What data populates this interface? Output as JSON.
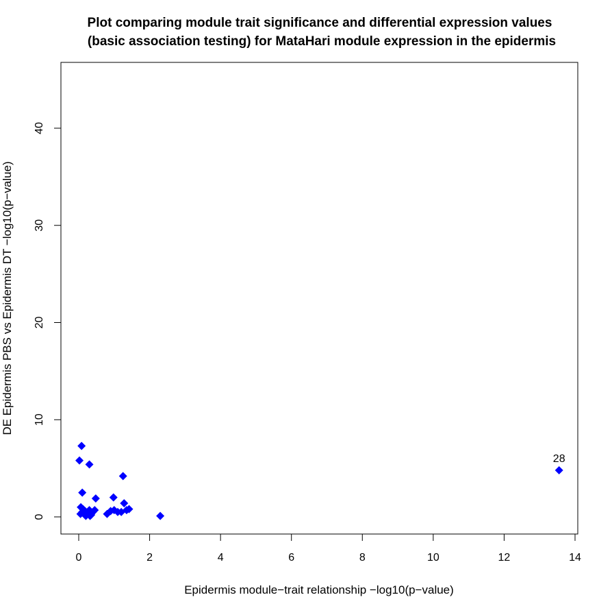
{
  "chart_data": {
    "type": "scatter",
    "title_line1": "Plot comparing module trait significance and differential expression values",
    "title_line2": "(basic association testing) for MataHari module expression in the epidermis",
    "xlabel": "Epidermis module−trait relationship −log10(p−value)",
    "ylabel": "DE Epidermis PBS vs Epidermis DT −log10(p−value)",
    "xlim": [
      0,
      14
    ],
    "ylim": [
      0,
      45
    ],
    "x_ticks": [
      0,
      2,
      4,
      6,
      8,
      10,
      12,
      14
    ],
    "y_ticks": [
      0,
      10,
      20,
      30,
      40
    ],
    "grid": false,
    "marker": "diamond",
    "point_color": "#0000ff",
    "points": [
      {
        "x": 0.08,
        "y": 7.3
      },
      {
        "x": 0.02,
        "y": 5.8
      },
      {
        "x": 0.3,
        "y": 5.4
      },
      {
        "x": 1.25,
        "y": 4.2
      },
      {
        "x": 0.1,
        "y": 2.5
      },
      {
        "x": 0.48,
        "y": 1.9
      },
      {
        "x": 0.98,
        "y": 2.0
      },
      {
        "x": 1.28,
        "y": 1.4
      },
      {
        "x": 0.06,
        "y": 1.0
      },
      {
        "x": 0.12,
        "y": 0.8
      },
      {
        "x": 0.18,
        "y": 0.6
      },
      {
        "x": 0.25,
        "y": 0.4
      },
      {
        "x": 0.3,
        "y": 0.7
      },
      {
        "x": 0.35,
        "y": 0.2
      },
      {
        "x": 0.4,
        "y": 0.5
      },
      {
        "x": 0.45,
        "y": 0.7
      },
      {
        "x": 0.05,
        "y": 0.3
      },
      {
        "x": 0.1,
        "y": 0.5
      },
      {
        "x": 0.2,
        "y": 0.1
      },
      {
        "x": 0.32,
        "y": 0.1
      },
      {
        "x": 0.8,
        "y": 0.3
      },
      {
        "x": 0.9,
        "y": 0.6
      },
      {
        "x": 1.0,
        "y": 0.7
      },
      {
        "x": 1.1,
        "y": 0.5
      },
      {
        "x": 1.2,
        "y": 0.5
      },
      {
        "x": 1.35,
        "y": 0.7
      },
      {
        "x": 1.42,
        "y": 0.8
      },
      {
        "x": 2.3,
        "y": 0.1
      },
      {
        "x": 13.55,
        "y": 4.8,
        "label": "28"
      }
    ]
  }
}
